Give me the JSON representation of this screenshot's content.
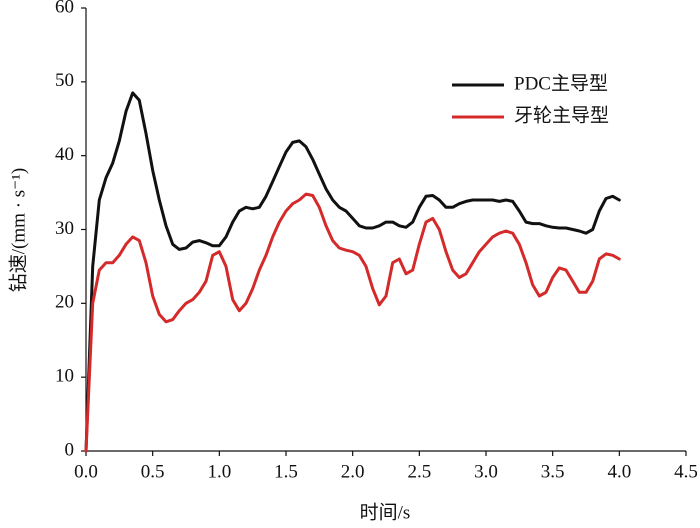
{
  "chart_data": {
    "type": "line",
    "xlabel": "时间/s",
    "ylabel": "钻速/(mm · s⁻¹)",
    "xlim": [
      0,
      4.5
    ],
    "ylim": [
      0,
      60
    ],
    "xticks": [
      {
        "value": 0,
        "label": "0.0"
      },
      {
        "value": 0.5,
        "label": "0.5"
      },
      {
        "value": 1,
        "label": "1.0"
      },
      {
        "value": 1.5,
        "label": "1.5"
      },
      {
        "value": 2,
        "label": "2.0"
      },
      {
        "value": 2.5,
        "label": "2.5"
      },
      {
        "value": 3,
        "label": "3.0"
      },
      {
        "value": 3.5,
        "label": "3.5"
      },
      {
        "value": 4,
        "label": "4.0"
      },
      {
        "value": 4.5,
        "label": "4.5"
      }
    ],
    "yticks": [
      0,
      10,
      20,
      30,
      40,
      50,
      60
    ],
    "grid": false,
    "legend": "upper right",
    "x": [
      0,
      0.05,
      0.1,
      0.15,
      0.2,
      0.25,
      0.3,
      0.35,
      0.4,
      0.45,
      0.5,
      0.55,
      0.6,
      0.65,
      0.7,
      0.75,
      0.8,
      0.85,
      0.9,
      0.95,
      1.0,
      1.05,
      1.1,
      1.15,
      1.2,
      1.25,
      1.3,
      1.35,
      1.4,
      1.45,
      1.5,
      1.55,
      1.6,
      1.65,
      1.7,
      1.75,
      1.8,
      1.85,
      1.9,
      1.95,
      2.0,
      2.05,
      2.1,
      2.15,
      2.2,
      2.25,
      2.3,
      2.35,
      2.4,
      2.45,
      2.5,
      2.55,
      2.6,
      2.65,
      2.7,
      2.75,
      2.8,
      2.85,
      2.9,
      2.95,
      3.0,
      3.05,
      3.1,
      3.15,
      3.2,
      3.25,
      3.3,
      3.35,
      3.4,
      3.45,
      3.5,
      3.55,
      3.6,
      3.65,
      3.7,
      3.75,
      3.8,
      3.85,
      3.9,
      3.95,
      4.0
    ],
    "series": [
      {
        "name": "PDC主导型",
        "color": "#111111",
        "values": [
          0,
          25,
          34,
          37,
          39,
          42,
          46,
          48.5,
          47.5,
          43,
          38,
          34,
          30.5,
          28,
          27.3,
          27.5,
          28.3,
          28.5,
          28.2,
          27.8,
          27.8,
          29,
          31,
          32.5,
          33,
          32.8,
          33,
          34.5,
          36.5,
          38.5,
          40.5,
          41.8,
          42,
          41.2,
          39.5,
          37.5,
          35.5,
          34,
          33,
          32.5,
          31.5,
          30.5,
          30.2,
          30.2,
          30.5,
          31,
          31,
          30.5,
          30.3,
          31,
          33,
          34.5,
          34.6,
          34,
          33,
          33,
          33.5,
          33.8,
          34,
          34,
          34,
          34,
          33.8,
          34,
          33.8,
          32.5,
          31,
          30.8,
          30.8,
          30.5,
          30.3,
          30.2,
          30.2,
          30,
          29.8,
          29.5,
          30,
          32.5,
          34.2,
          34.5,
          34
        ]
      },
      {
        "name": "牙轮主导型",
        "color": "#d42a2a",
        "values": [
          0,
          20,
          24.5,
          25.5,
          25.5,
          26.5,
          28,
          29,
          28.5,
          25.5,
          21,
          18.5,
          17.5,
          17.8,
          19,
          20,
          20.5,
          21.5,
          23,
          26.5,
          27,
          25,
          20.5,
          19,
          20,
          22,
          24.5,
          26.5,
          29,
          31,
          32.5,
          33.5,
          34,
          34.8,
          34.6,
          33,
          30.5,
          28.5,
          27.5,
          27.2,
          27,
          26.5,
          25,
          22,
          19.8,
          21,
          25.5,
          26,
          24,
          24.5,
          28,
          31,
          31.5,
          30,
          27,
          24.5,
          23.5,
          24,
          25.5,
          27,
          28,
          29,
          29.5,
          29.8,
          29.5,
          28,
          25.5,
          22.5,
          21,
          21.5,
          23.5,
          24.8,
          24.5,
          23,
          21.5,
          21.5,
          23,
          26,
          26.7,
          26.5,
          26
        ]
      }
    ]
  }
}
